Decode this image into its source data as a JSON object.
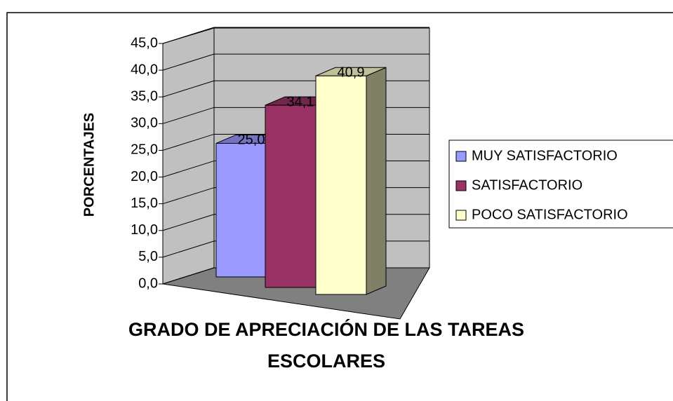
{
  "chart_data": {
    "type": "bar3d",
    "x_label": "GRADO DE APRECIACIÓN DE LAS TAREAS ESCOLARES",
    "y_label": "PORCENTAJES",
    "series": [
      {
        "name": "MUY SATISFACTORIO",
        "color": "#9999ff",
        "values": [
          25.0
        ],
        "value_labels": [
          "25,0"
        ]
      },
      {
        "name": "SATISFACTORIO",
        "color": "#993366",
        "values": [
          34.1
        ],
        "value_labels": [
          "34,1"
        ]
      },
      {
        "name": "POCO SATISFACTORIO",
        "color": "#ffffcc",
        "values": [
          40.9
        ],
        "value_labels": [
          "40,9"
        ]
      }
    ],
    "ylim": [
      0,
      45
    ],
    "yticks": [
      {
        "value": 0,
        "label": "0,0"
      },
      {
        "value": 5,
        "label": "5,0"
      },
      {
        "value": 10,
        "label": "10,0"
      },
      {
        "value": 15,
        "label": "15,0"
      },
      {
        "value": 20,
        "label": "20,0"
      },
      {
        "value": 25,
        "label": "25,0"
      },
      {
        "value": 30,
        "label": "30,0"
      },
      {
        "value": 35,
        "label": "35,0"
      },
      {
        "value": 40,
        "label": "40,0"
      },
      {
        "value": 45,
        "label": "45,0"
      }
    ],
    "grid": true,
    "legend": "right"
  }
}
